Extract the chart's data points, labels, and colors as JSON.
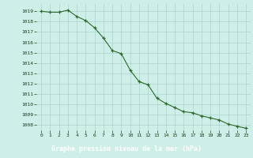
{
  "hours": [
    0,
    1,
    2,
    3,
    4,
    5,
    6,
    7,
    8,
    9,
    10,
    11,
    12,
    13,
    14,
    15,
    16,
    17,
    18,
    19,
    20,
    21,
    22,
    23
  ],
  "pressure": [
    1019.0,
    1018.9,
    1018.9,
    1019.1,
    1018.5,
    1018.1,
    1017.4,
    1016.4,
    1015.2,
    1014.9,
    1013.3,
    1012.2,
    1011.9,
    1010.6,
    1010.1,
    1009.7,
    1009.3,
    1009.2,
    1008.9,
    1008.7,
    1008.5,
    1008.1,
    1007.9,
    1007.7
  ],
  "ylim": [
    1007.5,
    1019.7
  ],
  "yticks": [
    1008,
    1009,
    1010,
    1011,
    1012,
    1013,
    1014,
    1015,
    1016,
    1017,
    1018,
    1019
  ],
  "xlabel": "Graphe pression niveau de la mer (hPa)",
  "line_color": "#2d6a2d",
  "marker_color": "#2d6a2d",
  "bg_color": "#ceeee8",
  "grid_color": "#aad4cc",
  "footer_bg_color": "#2d6a2d",
  "footer_text_color": "#ffffff",
  "tick_text_color": "#1a3a1a",
  "figsize": [
    3.2,
    2.0
  ],
  "dpi": 100
}
